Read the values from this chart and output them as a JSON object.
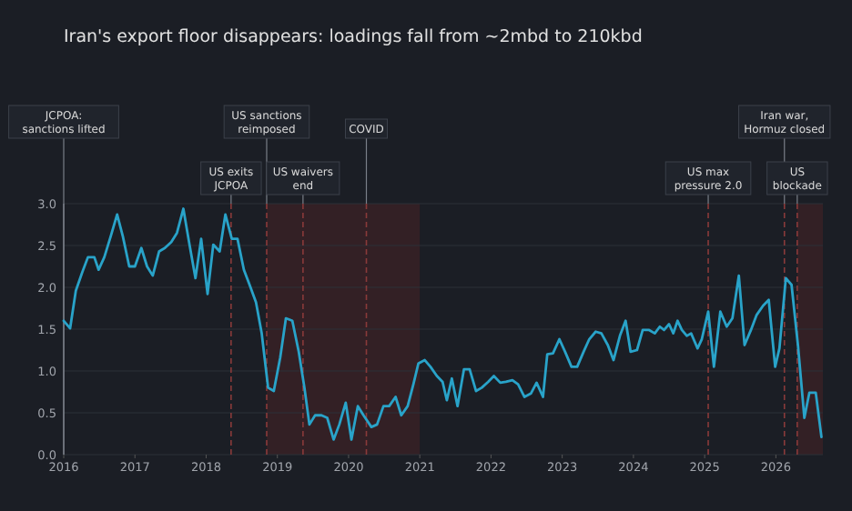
{
  "chart_data": {
    "type": "line",
    "title": "Iran's export floor disappears: loadings fall from ~2mbd to 210kbd",
    "x": [
      2016.0,
      2016.09,
      2016.17,
      2016.26,
      2016.34,
      2016.43,
      2016.49,
      2016.57,
      2016.66,
      2016.75,
      2016.83,
      2016.92,
      2017.0,
      2017.09,
      2017.17,
      2017.25,
      2017.34,
      2017.42,
      2017.51,
      2017.59,
      2017.68,
      2017.76,
      2017.85,
      2017.93,
      2018.02,
      2018.1,
      2018.19,
      2018.27,
      2018.36,
      2018.44,
      2018.53,
      2018.61,
      2018.7,
      2018.78,
      2018.87,
      2018.95,
      2019.04,
      2019.12,
      2019.21,
      2019.3,
      2019.38,
      2019.45,
      2019.53,
      2019.62,
      2019.7,
      2019.79,
      2019.87,
      2019.96,
      2020.04,
      2020.13,
      2020.21,
      2020.32,
      2020.4,
      2020.49,
      2020.57,
      2020.66,
      2020.74,
      2020.83,
      2020.91,
      2020.98,
      2021.07,
      2021.15,
      2021.24,
      2021.32,
      2021.38,
      2021.45,
      2021.53,
      2021.62,
      2021.7,
      2021.79,
      2021.87,
      2021.96,
      2022.04,
      2022.13,
      2022.21,
      2022.3,
      2022.38,
      2022.47,
      2022.56,
      2022.64,
      2022.73,
      2022.79,
      2022.87,
      2022.96,
      2023.04,
      2023.13,
      2023.21,
      2023.3,
      2023.38,
      2023.47,
      2023.55,
      2023.64,
      2023.72,
      2023.81,
      2023.89,
      2023.96,
      2024.05,
      2024.13,
      2024.22,
      2024.3,
      2024.37,
      2024.43,
      2024.5,
      2024.56,
      2024.62,
      2024.68,
      2024.75,
      2024.81,
      2024.9,
      2024.96,
      2025.05,
      2025.13,
      2025.22,
      2025.31,
      2025.39,
      2025.48,
      2025.56,
      2025.65,
      2025.73,
      2025.82,
      2025.9,
      2025.99,
      2026.05,
      2026.14,
      2026.22,
      2026.31,
      2026.4,
      2026.47,
      2026.56,
      2026.64
    ],
    "series": [
      {
        "color": "#29a3c9",
        "values": [
          1.6,
          1.51,
          1.96,
          2.18,
          2.36,
          2.36,
          2.21,
          2.36,
          2.61,
          2.87,
          2.61,
          2.25,
          2.25,
          2.47,
          2.25,
          2.14,
          2.43,
          2.47,
          2.54,
          2.65,
          2.94,
          2.54,
          2.11,
          2.58,
          1.92,
          2.51,
          2.43,
          2.87,
          2.58,
          2.58,
          2.21,
          2.03,
          1.82,
          1.45,
          0.8,
          0.76,
          1.16,
          1.63,
          1.6,
          1.23,
          0.8,
          0.36,
          0.47,
          0.47,
          0.44,
          0.18,
          0.36,
          0.62,
          0.18,
          0.58,
          0.47,
          0.33,
          0.36,
          0.58,
          0.58,
          0.69,
          0.47,
          0.58,
          0.84,
          1.09,
          1.13,
          1.05,
          0.94,
          0.87,
          0.65,
          0.91,
          0.58,
          1.02,
          1.02,
          0.76,
          0.8,
          0.87,
          0.94,
          0.86,
          0.87,
          0.89,
          0.84,
          0.69,
          0.73,
          0.86,
          0.69,
          1.2,
          1.21,
          1.38,
          1.23,
          1.05,
          1.05,
          1.23,
          1.38,
          1.47,
          1.45,
          1.31,
          1.13,
          1.42,
          1.6,
          1.23,
          1.25,
          1.49,
          1.49,
          1.45,
          1.53,
          1.49,
          1.56,
          1.45,
          1.6,
          1.49,
          1.42,
          1.45,
          1.27,
          1.38,
          1.71,
          1.05,
          1.71,
          1.53,
          1.63,
          2.14,
          1.31,
          1.49,
          1.67,
          1.78,
          1.85,
          1.05,
          1.27,
          2.11,
          2.03,
          1.31,
          0.44,
          0.74,
          0.74,
          0.21
        ]
      }
    ],
    "xlim": [
      2016,
      2026.66
    ],
    "xticks": [
      2016,
      2017,
      2018,
      2019,
      2020,
      2021,
      2022,
      2023,
      2024,
      2025,
      2026
    ],
    "ylim": [
      0,
      3
    ],
    "yticks": [
      {
        "value": 0,
        "label": "0.0"
      },
      {
        "value": 0.5,
        "label": "0.5"
      },
      {
        "value": 1,
        "label": "1.0"
      },
      {
        "value": 1.5,
        "label": "1.5"
      },
      {
        "value": 2,
        "label": "2.0"
      },
      {
        "value": 2.5,
        "label": "2.5"
      },
      {
        "value": 3,
        "label": "3.0"
      }
    ],
    "grid": "y",
    "line_style": "solid",
    "marker": "none",
    "bands": [
      {
        "axis": "x",
        "from": 2018.85,
        "to": 2021.0,
        "color": "#3a2026"
      },
      {
        "axis": "x",
        "from": 2026.3,
        "to": 2026.66,
        "color": "#3a2026"
      }
    ],
    "ref_lines": [
      {
        "axis": "x",
        "value": 2016.0,
        "label": "JCPOA:\nsanctions lifted",
        "color": "#7a7f88",
        "line_style": "solid"
      },
      {
        "axis": "x",
        "value": 2018.35,
        "label": "US exits\nJCPOA",
        "color": "#8a3a3a",
        "line_style": "dashed"
      },
      {
        "axis": "x",
        "value": 2018.85,
        "label": "US sanctions\nreimposed",
        "color": "#8a3a3a",
        "line_style": "dashed"
      },
      {
        "axis": "x",
        "value": 2019.36,
        "label": "US waivers\nend",
        "color": "#8a3a3a",
        "line_style": "dashed"
      },
      {
        "axis": "x",
        "value": 2020.25,
        "label": "COVID",
        "color": "#8a3a3a",
        "line_style": "dashed"
      },
      {
        "axis": "x",
        "value": 2025.05,
        "label": "US max\npressure 2.0",
        "color": "#8a3a3a",
        "line_style": "dashed"
      },
      {
        "axis": "x",
        "value": 2026.12,
        "label": "Iran war,\nHormuz closed",
        "color": "#8a3a3a",
        "line_style": "dashed"
      },
      {
        "axis": "x",
        "value": 2026.3,
        "label": "US\nblockade",
        "color": "#8a3a3a",
        "line_style": "dashed"
      }
    ]
  }
}
